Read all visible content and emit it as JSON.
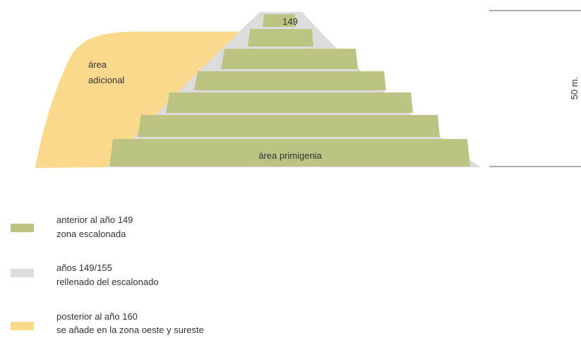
{
  "diagram": {
    "labels": {
      "top_step": "149",
      "additional_area": [
        "área",
        "adicional"
      ],
      "original_area": "área primigenia",
      "height": "50 m."
    },
    "legend": [
      {
        "lines": [
          "anterior al año 149",
          "zona escalonada"
        ]
      },
      {
        "lines": [
          "años 149/155",
          "rellenado del escalonado"
        ]
      },
      {
        "lines": [
          "posterior al año 160",
          "se añade en la zona oeste y sureste"
        ]
      }
    ]
  }
}
